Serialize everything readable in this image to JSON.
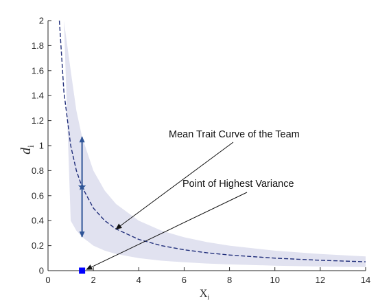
{
  "chart_data": {
    "type": "line",
    "xlabel": "X",
    "xlabel_sub": "i",
    "ylabel": "d",
    "ylabel_sub": "i",
    "xlim": [
      0,
      14
    ],
    "ylim": [
      0,
      2
    ],
    "xticks": [
      0,
      2,
      4,
      6,
      8,
      10,
      12,
      14
    ],
    "yticks": [
      0,
      0.2,
      0.4,
      0.6,
      0.8,
      1,
      1.2,
      1.4,
      1.6,
      1.8,
      2
    ],
    "xtick_labels": [
      "0",
      "2",
      "4",
      "6",
      "8",
      "10",
      "12",
      "14"
    ],
    "ytick_labels": [
      "0",
      "0.2",
      "0.4",
      "0.6",
      "0.8",
      "1",
      "1.2",
      "1.4",
      "1.6",
      "1.8",
      "2"
    ],
    "grid": false,
    "series": [
      {
        "style": "dashed",
        "color": "#1f2d7a",
        "x": [
          0.5,
          0.7,
          1,
          1.25,
          1.5,
          2,
          2.5,
          3,
          4,
          5,
          6,
          7,
          8,
          10,
          12,
          14
        ],
        "y": [
          2.0,
          1.43,
          1.0,
          0.8,
          0.67,
          0.5,
          0.4,
          0.333,
          0.25,
          0.2,
          0.167,
          0.143,
          0.125,
          0.1,
          0.083,
          0.071
        ]
      }
    ],
    "band": {
      "color": "#e1e2f0",
      "x": [
        0.5,
        0.7,
        1,
        1.25,
        1.5,
        2,
        2.5,
        3,
        4,
        5,
        6,
        7,
        8,
        10,
        12,
        14
      ],
      "upper": [
        2.0,
        2.0,
        1.6,
        1.28,
        1.07,
        0.8,
        0.64,
        0.533,
        0.4,
        0.32,
        0.267,
        0.229,
        0.2,
        0.16,
        0.133,
        0.114
      ],
      "lower": [
        2.0,
        2.0,
        0.4,
        0.32,
        0.27,
        0.2,
        0.16,
        0.133,
        0.1,
        0.08,
        0.067,
        0.057,
        0.05,
        0.04,
        0.033,
        0.029
      ]
    },
    "range_marker": {
      "x": 1.5,
      "y_low": 0.27,
      "y_high": 1.07,
      "center_y": 0.67,
      "color": "#2f5597"
    },
    "highest_variance_point": {
      "x": 1.5,
      "y": 0,
      "color": "#0000ff"
    },
    "annotations": [
      {
        "text": "Mean Trait Curve of the Team",
        "target_x": 3.0,
        "target_y": 0.333
      },
      {
        "text": "Point of Highest Variance",
        "target_x": 1.7,
        "target_y": 0.01
      }
    ]
  }
}
